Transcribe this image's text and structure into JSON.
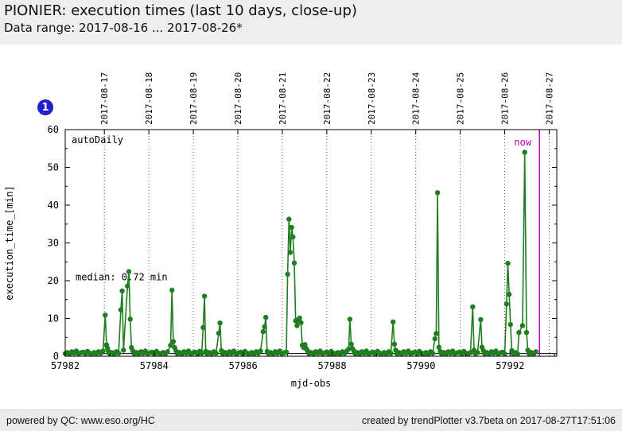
{
  "header": {
    "title": "PIONIER: execution times (last 10 days, close-up)",
    "subtitle": "Data range: 2017-08-16 ... 2017-08-26*"
  },
  "badge": {
    "label": "1",
    "color": "#2121cc"
  },
  "footer": {
    "left": "powered by QC: www.eso.org/HC",
    "right": "created by trendPlotter v3.7beta on 2017-08-27T17:51:06"
  },
  "chart_data": {
    "type": "line",
    "title": "PIONIER: execution times (last 10 days, close-up)",
    "xlabel": "mjd-obs",
    "ylabel": "execution_time_[min]",
    "series_label": "autoDaily",
    "xlim": [
      57982,
      57993.05
    ],
    "ylim": [
      0,
      60
    ],
    "x_ticks": [
      57982,
      57984,
      57986,
      57988,
      57990,
      57992
    ],
    "x_minor_ticks": [
      57983,
      57985,
      57987,
      57989,
      57991,
      57993
    ],
    "y_ticks": [
      0,
      10,
      20,
      30,
      40,
      50,
      60
    ],
    "y_minor_ticks": [
      5,
      15,
      25,
      35,
      45,
      55
    ],
    "grid": "vertical dotted lines at top-axis date positions",
    "legend_position": "inside top-left (autoDaily)",
    "top_dates": [
      "2017-08-17",
      "2017-08-18",
      "2017-08-19",
      "2017-08-20",
      "2017-08-21",
      "2017-08-22",
      "2017-08-23",
      "2017-08-24",
      "2017-08-25",
      "2017-08-26",
      "2017-08-27"
    ],
    "top_date_offset_mjd": 0.88,
    "median_label": "median: 0.72 min",
    "median_value": 0.72,
    "now_label": "now",
    "now_mjd": 57992.66,
    "line_color": "#207d20",
    "now_color": "#bb00bb",
    "grid_color": "#555555",
    "baseline_step": 0.05,
    "baseline_values": [
      0.7,
      1.0,
      0.6,
      1.2,
      0.8,
      1.4,
      0.7,
      0.9,
      1.1,
      0.6,
      1.3,
      0.8
    ],
    "baseline_runs": [
      [
        57982.0,
        57982.88
      ],
      [
        57983.0,
        57983.22
      ],
      [
        57983.55,
        57984.34
      ],
      [
        57984.52,
        57985.07
      ],
      [
        57985.19,
        57985.42
      ],
      [
        57985.54,
        57986.42
      ],
      [
        57986.57,
        57986.97
      ],
      [
        57987.48,
        57988.34
      ],
      [
        57988.52,
        57989.34
      ],
      [
        57989.46,
        57990.28
      ],
      [
        57990.46,
        57991.13
      ],
      [
        57991.22,
        57991.31
      ],
      [
        57991.43,
        57991.89
      ],
      [
        57992.07,
        57992.17
      ],
      [
        57992.43,
        57992.62
      ]
    ],
    "series": [
      {
        "name": "autoDaily",
        "color": "#207d20",
        "points": [
          [
            57982.9,
            10.9
          ],
          [
            57982.93,
            3.0
          ],
          [
            57982.95,
            2.1
          ],
          [
            57982.97,
            1.3
          ],
          [
            57983.25,
            12.3
          ],
          [
            57983.28,
            17.3
          ],
          [
            57983.31,
            1.6
          ],
          [
            57983.4,
            18.6
          ],
          [
            57983.43,
            22.4
          ],
          [
            57983.46,
            9.8
          ],
          [
            57983.49,
            2.3
          ],
          [
            57983.52,
            1.4
          ],
          [
            57984.37,
            2.9
          ],
          [
            57984.4,
            17.5
          ],
          [
            57984.43,
            3.9
          ],
          [
            57984.46,
            2.3
          ],
          [
            57984.49,
            1.4
          ],
          [
            57985.1,
            7.6
          ],
          [
            57985.13,
            15.9
          ],
          [
            57985.16,
            1.3
          ],
          [
            57985.45,
            6.1
          ],
          [
            57985.48,
            8.8
          ],
          [
            57985.51,
            1.5
          ],
          [
            57986.45,
            6.5
          ],
          [
            57986.48,
            7.8
          ],
          [
            57986.51,
            10.3
          ],
          [
            57986.54,
            1.3
          ],
          [
            57987.0,
            21.7
          ],
          [
            57987.03,
            36.3
          ],
          [
            57987.06,
            27.5
          ],
          [
            57987.09,
            34.1
          ],
          [
            57987.12,
            31.6
          ],
          [
            57987.15,
            24.7
          ],
          [
            57987.18,
            9.4
          ],
          [
            57987.21,
            8.1
          ],
          [
            57987.24,
            9.7
          ],
          [
            57987.27,
            10.1
          ],
          [
            57987.3,
            8.9
          ],
          [
            57987.33,
            2.9
          ],
          [
            57987.36,
            2.3
          ],
          [
            57987.39,
            3.1
          ],
          [
            57987.42,
            2.0
          ],
          [
            57987.45,
            1.4
          ],
          [
            57988.37,
            1.9
          ],
          [
            57988.4,
            9.8
          ],
          [
            57988.43,
            3.2
          ],
          [
            57988.46,
            2.0
          ],
          [
            57988.49,
            1.4
          ],
          [
            57989.37,
            9.1
          ],
          [
            57989.4,
            3.2
          ],
          [
            57989.43,
            1.6
          ],
          [
            57990.31,
            4.6
          ],
          [
            57990.34,
            6.0
          ],
          [
            57990.37,
            43.3
          ],
          [
            57990.4,
            2.4
          ],
          [
            57990.43,
            1.3
          ],
          [
            57991.16,
            13.1
          ],
          [
            57991.19,
            1.6
          ],
          [
            57991.34,
            9.7
          ],
          [
            57991.37,
            2.4
          ],
          [
            57991.4,
            1.5
          ],
          [
            57991.92,
            13.8
          ],
          [
            57991.95,
            24.6
          ],
          [
            57991.98,
            16.4
          ],
          [
            57992.01,
            8.4
          ],
          [
            57992.04,
            1.5
          ],
          [
            57992.2,
            6.3
          ],
          [
            57992.28,
            8.1
          ],
          [
            57992.33,
            54.0
          ],
          [
            57992.37,
            6.3
          ],
          [
            57992.4,
            1.6
          ]
        ]
      }
    ]
  }
}
